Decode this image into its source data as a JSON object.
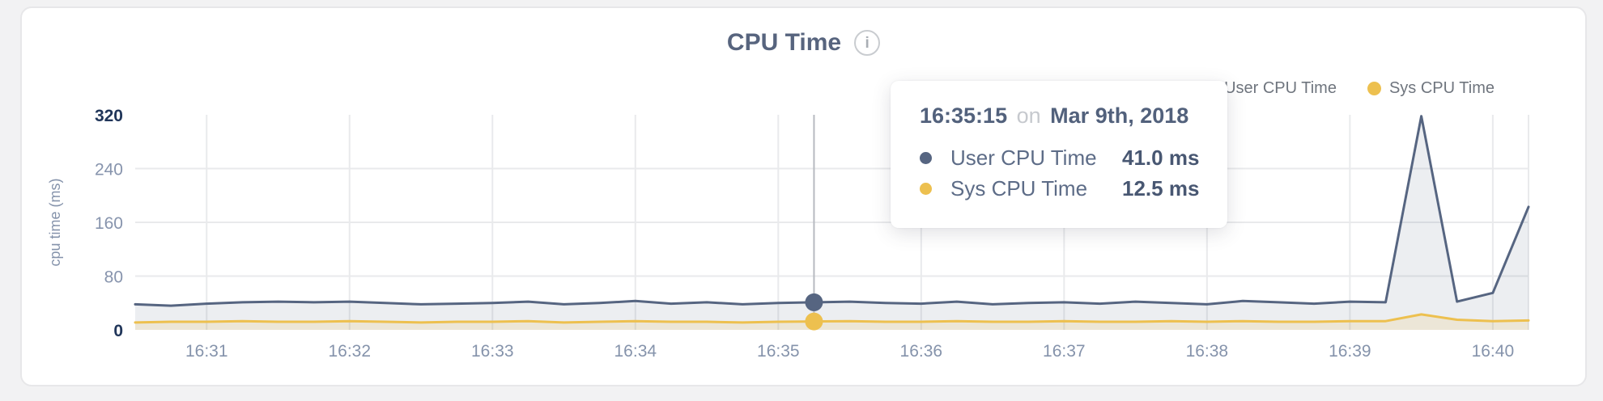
{
  "card": {
    "info_icon_glyph": "i"
  },
  "tooltip": {
    "time": "16:35:15",
    "connector": "on",
    "date": "Mar 9th, 2018",
    "values": [
      "41.0 ms",
      "12.5 ms"
    ]
  },
  "chart_data": {
    "type": "area",
    "title": "CPU Time",
    "xlabel": "",
    "ylabel": "cpu time (ms)",
    "ylim": [
      0,
      320
    ],
    "grid": true,
    "legend_position": "top-right",
    "x": [
      "16:30:30",
      "16:30:45",
      "16:31:00",
      "16:31:15",
      "16:31:30",
      "16:31:45",
      "16:32:00",
      "16:32:15",
      "16:32:30",
      "16:32:45",
      "16:33:00",
      "16:33:15",
      "16:33:30",
      "16:33:45",
      "16:34:00",
      "16:34:15",
      "16:34:30",
      "16:34:45",
      "16:35:00",
      "16:35:15",
      "16:35:30",
      "16:35:45",
      "16:36:00",
      "16:36:15",
      "16:36:30",
      "16:36:45",
      "16:37:00",
      "16:37:15",
      "16:37:30",
      "16:37:45",
      "16:38:00",
      "16:38:15",
      "16:38:30",
      "16:38:45",
      "16:39:00",
      "16:39:15",
      "16:39:30",
      "16:39:45",
      "16:40:00",
      "16:40:15"
    ],
    "series": [
      {
        "name": "User CPU Time",
        "color": "#566581",
        "fill": "rgba(86,101,129,0.11)",
        "values": [
          38,
          36,
          39,
          41,
          42,
          41,
          42,
          40,
          38,
          39,
          40,
          42,
          38,
          40,
          43,
          39,
          41,
          38,
          40,
          41,
          42,
          40,
          39,
          42,
          38,
          40,
          41,
          39,
          42,
          40,
          38,
          43,
          41,
          39,
          42,
          41,
          318,
          42,
          55,
          183
        ]
      },
      {
        "name": "Sys CPU Time",
        "color": "#edc04f",
        "fill": "rgba(237,192,79,0.16)",
        "values": [
          11,
          12,
          12,
          13,
          12,
          12,
          13,
          12,
          11,
          12,
          12,
          13,
          11,
          12,
          13,
          12,
          12,
          11,
          12,
          12.5,
          13,
          12,
          12,
          13,
          12,
          12,
          13,
          12,
          12,
          13,
          12,
          13,
          12,
          12,
          13,
          13,
          23,
          15,
          13,
          14
        ]
      }
    ],
    "x_tick_labels": [
      "16:31",
      "16:32",
      "16:33",
      "16:34",
      "16:35",
      "16:36",
      "16:37",
      "16:38",
      "16:39",
      "16:40"
    ],
    "tick_indices": [
      2,
      6,
      10,
      14,
      18,
      22,
      26,
      30,
      34,
      38
    ],
    "y_ticks": [
      {
        "label": "320",
        "value": 320,
        "strong": true,
        "line": false
      },
      {
        "label": "240",
        "value": 240,
        "strong": false,
        "line": true
      },
      {
        "label": "160",
        "value": 160,
        "strong": false,
        "line": true
      },
      {
        "label": "80",
        "value": 80,
        "strong": false,
        "line": true
      },
      {
        "label": "0",
        "value": 0,
        "strong": true,
        "line": false
      }
    ],
    "hover_index": 19,
    "colors": {
      "grid": "#e9eaec",
      "hover_line": "#b7bac0",
      "tick_strong": "#21365a",
      "tick_normal": "#8794ad",
      "x_tick": "#8593ab",
      "axis_title": "#8593ab"
    }
  }
}
